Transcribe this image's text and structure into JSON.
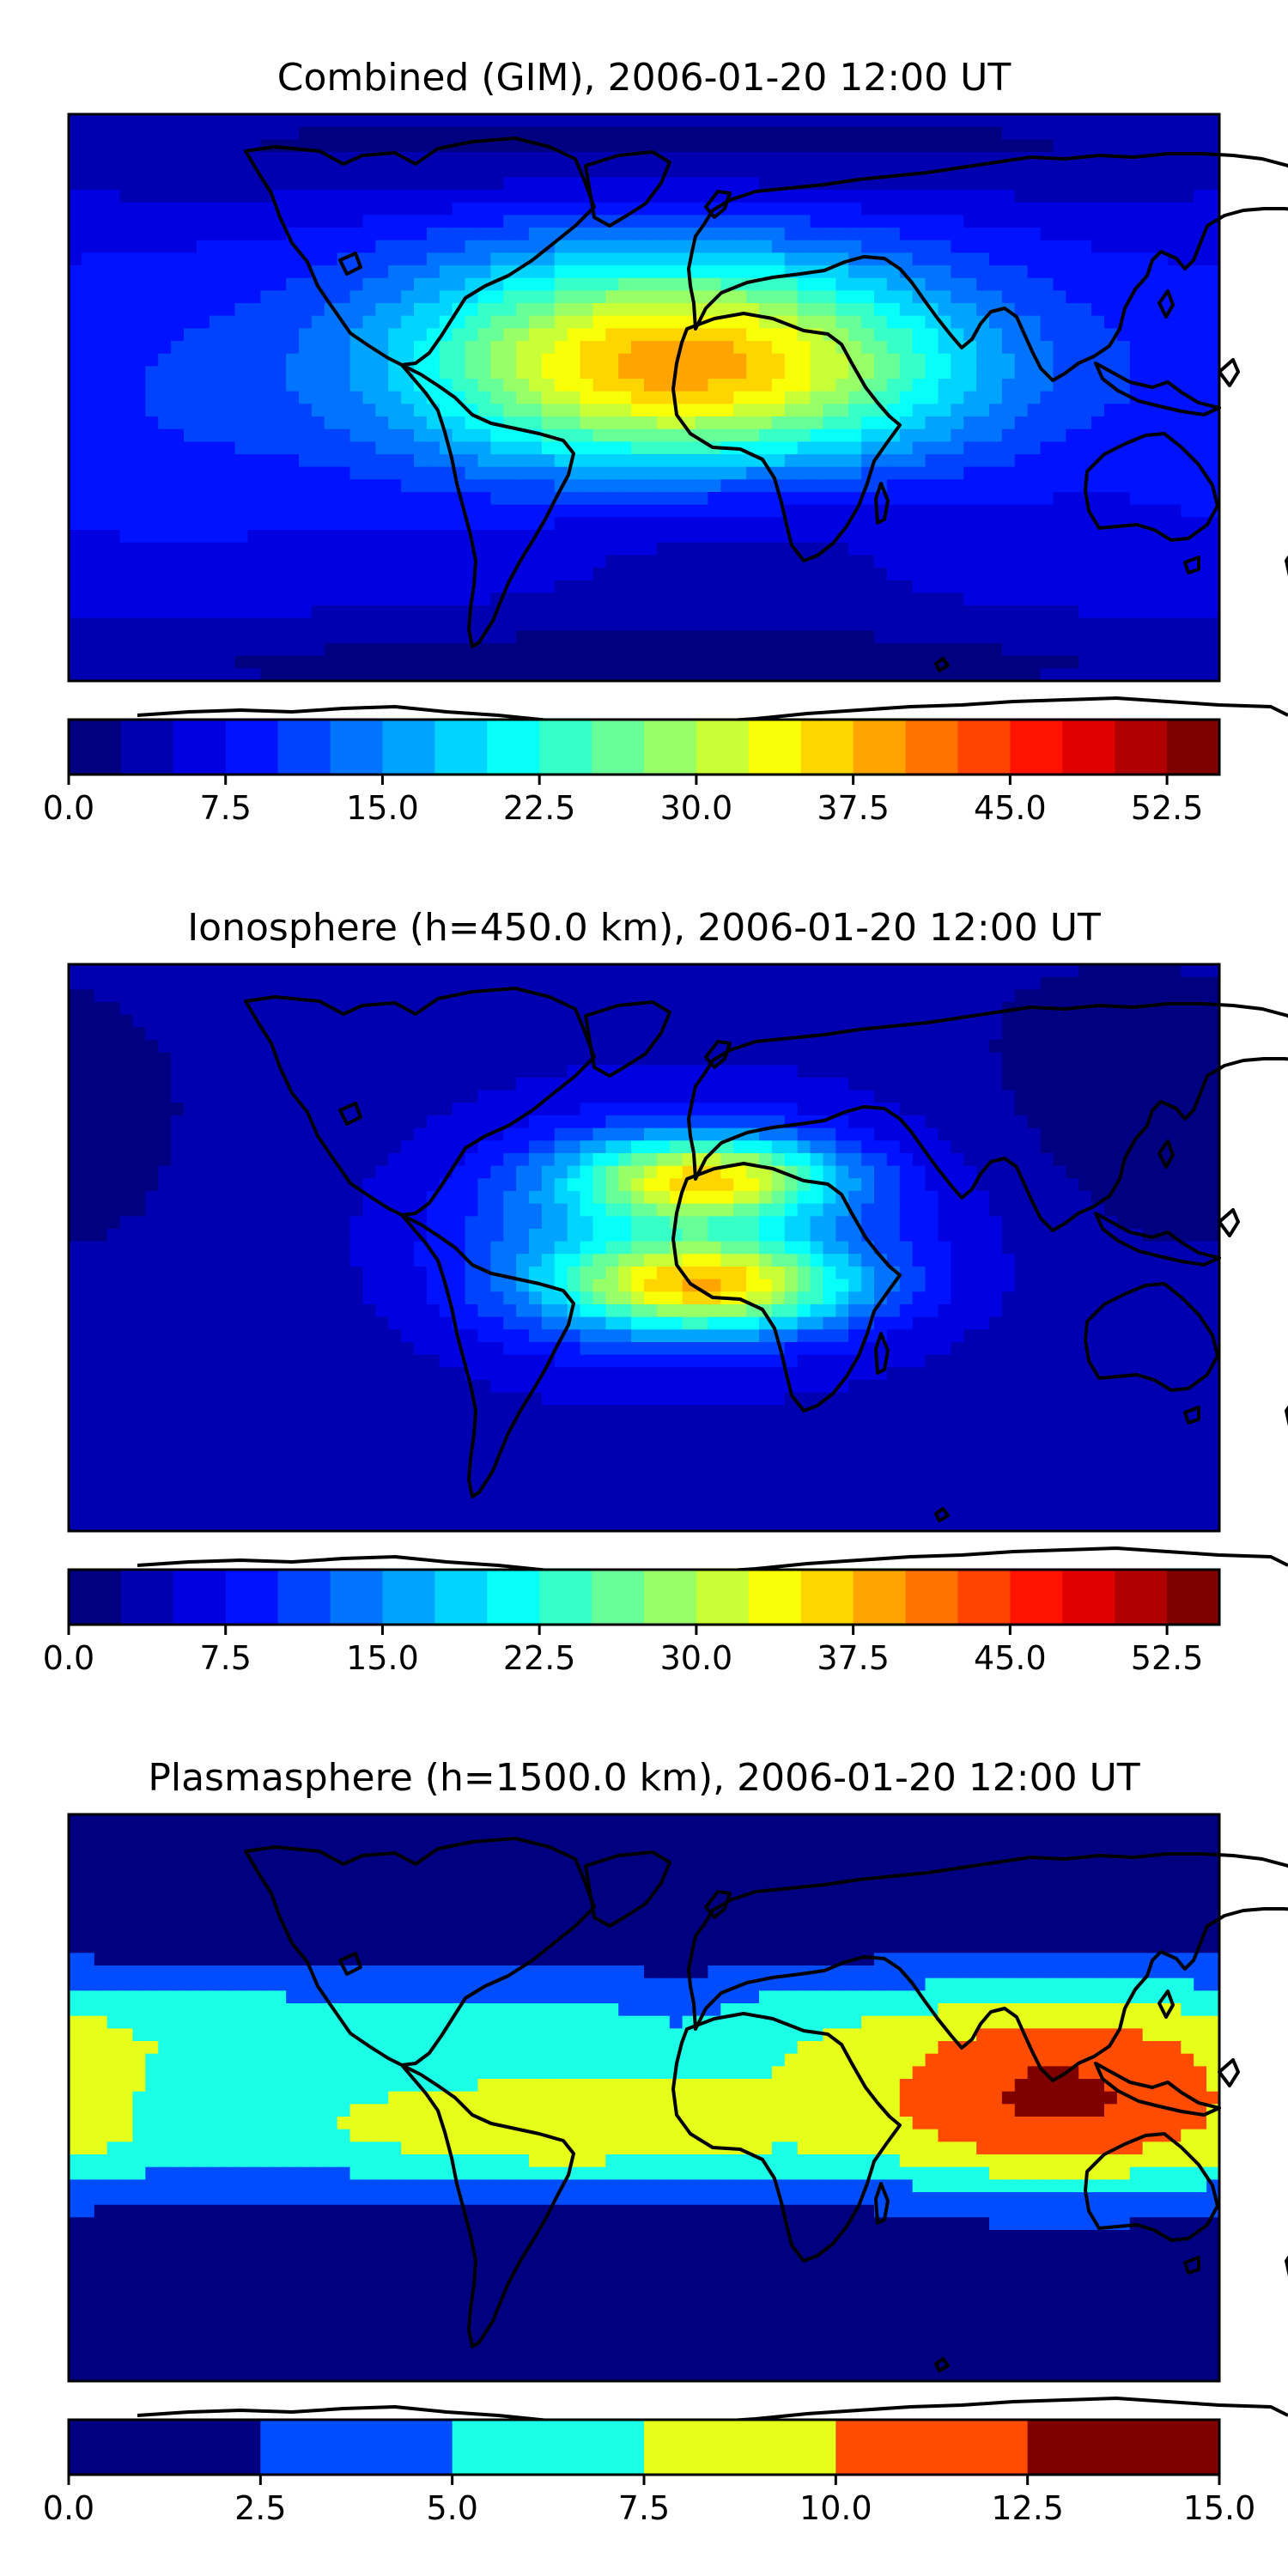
{
  "chart_data": [
    {
      "type": "heatmap",
      "title": "Combined (GIM), 2006-01-20 12:00 UT",
      "projection": "plate-carree",
      "lon_range": [
        -180,
        180
      ],
      "lat_range": [
        -90,
        90
      ],
      "colormap": "jet",
      "colorbar": {
        "levels": [
          0,
          2.5,
          5,
          7.5,
          10,
          12.5,
          15,
          17.5,
          20,
          22.5,
          25,
          27.5,
          30,
          32.5,
          35,
          37.5,
          40,
          42.5,
          45,
          47.5,
          50,
          52.5,
          55
        ],
        "ticks": [
          0,
          7.5,
          15,
          22.5,
          30,
          37.5,
          45,
          52.5
        ],
        "tick_labels": [
          "0.0",
          "7.5",
          "15.0",
          "22.5",
          "30.0",
          "37.5",
          "45.0",
          "52.5"
        ]
      },
      "field": {
        "background": 6.5,
        "features": [
          {
            "lon": 20,
            "lat": 10,
            "amp": 29,
            "width_lon": 60,
            "width_lat": 24
          },
          {
            "lon": 25,
            "lat": -40,
            "amp": -4,
            "width_lon": 50,
            "width_lat": 20
          },
          {
            "lon": -30,
            "lat": 15,
            "amp": 6,
            "width_lon": 50,
            "width_lat": 28
          },
          {
            "lon": -150,
            "lat": 0,
            "amp": 3,
            "width_lon": 40,
            "width_lat": 30
          },
          {
            "lon": 0,
            "lat": 80,
            "amp": -5,
            "width_lon": 200,
            "width_lat": 14
          },
          {
            "lon": 0,
            "lat": -85,
            "amp": -5,
            "width_lon": 200,
            "width_lat": 12
          }
        ]
      }
    },
    {
      "type": "heatmap",
      "title": "Ionosphere  (h=450.0 km), 2006-01-20 12:00 UT",
      "projection": "plate-carree",
      "lon_range": [
        -180,
        180
      ],
      "lat_range": [
        -90,
        90
      ],
      "colormap": "jet",
      "colorbar": {
        "levels": [
          0,
          2.5,
          5,
          7.5,
          10,
          12.5,
          15,
          17.5,
          20,
          22.5,
          25,
          27.5,
          30,
          32.5,
          35,
          37.5,
          40,
          42.5,
          45,
          47.5,
          50,
          52.5,
          55
        ],
        "ticks": [
          0,
          7.5,
          15,
          22.5,
          30,
          37.5,
          45,
          52.5
        ],
        "tick_labels": [
          "0.0",
          "7.5",
          "15.0",
          "22.5",
          "30.0",
          "37.5",
          "45.0",
          "52.5"
        ]
      },
      "field": {
        "background": 3.0,
        "features": [
          {
            "lon": 20,
            "lat": 22,
            "amp": 24,
            "width_lon": 28,
            "width_lat": 9
          },
          {
            "lon": 20,
            "lat": -12,
            "amp": 25,
            "width_lon": 32,
            "width_lat": 10
          },
          {
            "lon": 20,
            "lat": 5,
            "amp": 10,
            "width_lon": 55,
            "width_lat": 30
          },
          {
            "lon": -25,
            "lat": 0,
            "amp": 4,
            "width_lon": 35,
            "width_lat": 25
          },
          {
            "lon": 150,
            "lat": 40,
            "amp": -2,
            "width_lon": 40,
            "width_lat": 30
          }
        ]
      }
    },
    {
      "type": "heatmap",
      "title": "Plasmasphere (h=1500.0 km), 2006-01-20 12:00 UT",
      "projection": "plate-carree",
      "lon_range": [
        -180,
        180
      ],
      "lat_range": [
        -90,
        90
      ],
      "colormap": "jet",
      "colorbar": {
        "levels": [
          0,
          2.5,
          5,
          7.5,
          10,
          12.5,
          15
        ],
        "ticks": [
          0,
          2.5,
          5,
          7.5,
          10,
          12.5,
          15
        ],
        "tick_labels": [
          "0.0",
          "2.5",
          "5.0",
          "7.5",
          "10.0",
          "12.5",
          "15.0"
        ]
      },
      "field": {
        "background": 1.2,
        "lat_band": {
          "center": 5,
          "amp": 5.6,
          "width": 34,
          "power": 4
        },
        "features": [
          {
            "lon": 130,
            "lat": 0,
            "amp": 6.2,
            "width_lon": 42,
            "width_lat": 22
          },
          {
            "lon": -25,
            "lat": -12,
            "amp": 3.0,
            "width_lon": 45,
            "width_lat": 10
          },
          {
            "lon": -145,
            "lat": -5,
            "amp": -2.2,
            "width_lon": 10,
            "width_lat": 10
          },
          {
            "lon": 10,
            "lat": 30,
            "amp": -2.0,
            "width_lon": 12,
            "width_lat": 7
          }
        ]
      }
    }
  ]
}
